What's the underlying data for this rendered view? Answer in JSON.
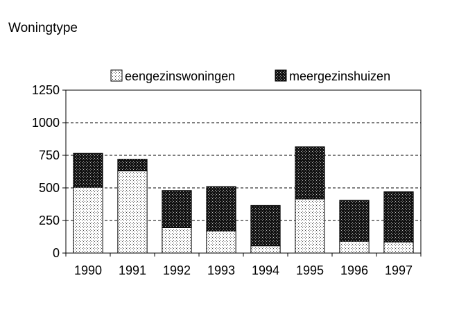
{
  "chart_data": {
    "type": "bar",
    "stacked": true,
    "title": "Woningtype",
    "xlabel": "",
    "ylabel": "",
    "categories": [
      "1990",
      "1991",
      "1992",
      "1993",
      "1994",
      "1995",
      "1996",
      "1997"
    ],
    "series": [
      {
        "name": "eengezinswoningen",
        "values": [
          505,
          630,
          195,
          170,
          55,
          415,
          90,
          85
        ],
        "pattern": "light-dots"
      },
      {
        "name": "meergezinshuizen",
        "values": [
          260,
          90,
          285,
          340,
          310,
          400,
          315,
          385
        ],
        "pattern": "dark-dots"
      }
    ],
    "ylim": [
      0,
      1250
    ],
    "yticks": [
      0,
      250,
      500,
      750,
      1000,
      1250
    ],
    "grid": "dashed-horizontal",
    "legend_position": "top"
  }
}
